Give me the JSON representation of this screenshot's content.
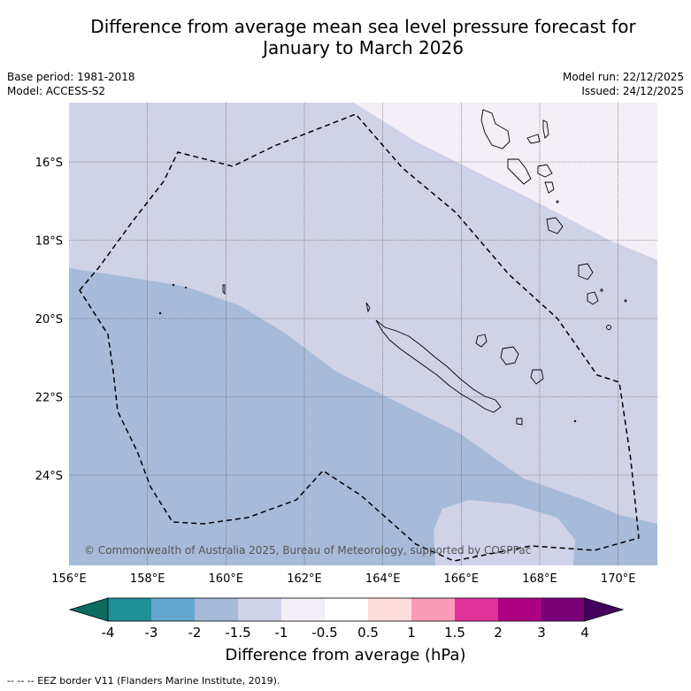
{
  "title": {
    "line1": "Difference from average mean sea level pressure forecast for",
    "line2": "January to March 2026"
  },
  "meta": {
    "base_period": "Base period: 1981-2018",
    "model": "Model: ACCESS-S2",
    "model_run": "Model run: 22/12/2025",
    "issued": "Issued: 24/12/2025"
  },
  "map": {
    "lat_labels": [
      "16°S",
      "18°S",
      "20°S",
      "22°S",
      "24°S"
    ],
    "lon_labels": [
      "156°E",
      "158°E",
      "160°E",
      "162°E",
      "164°E",
      "166°E",
      "168°E",
      "170°E"
    ],
    "copyright": "© Commonwealth of Australia 2025, Bureau of Meteorology, supported by COSPPac",
    "colors": {
      "minus2": "#a6bad9",
      "minus1_5": "#d0d2e8",
      "minus1": "#f4eef6",
      "grid": "#555555"
    }
  },
  "colorbar": {
    "colors": [
      "#0e6b62",
      "#1f9096",
      "#65a9d1",
      "#a6bad9",
      "#d0d2e8",
      "#f4eef6",
      "#ffffff",
      "#ffdddd",
      "#f89db8",
      "#df3399",
      "#ad0083",
      "#7a007a",
      "#45005e"
    ],
    "tick_labels": [
      "-4",
      "-3",
      "-2",
      "-1.5",
      "-1",
      "-0.5",
      "0.5",
      "1",
      "1.5",
      "2",
      "3",
      "4"
    ],
    "title": "Difference from average (hPa)"
  },
  "legend": {
    "eez_note": "--  --  -- EEZ border V11 (Flanders Marine Institute, 2019)."
  }
}
